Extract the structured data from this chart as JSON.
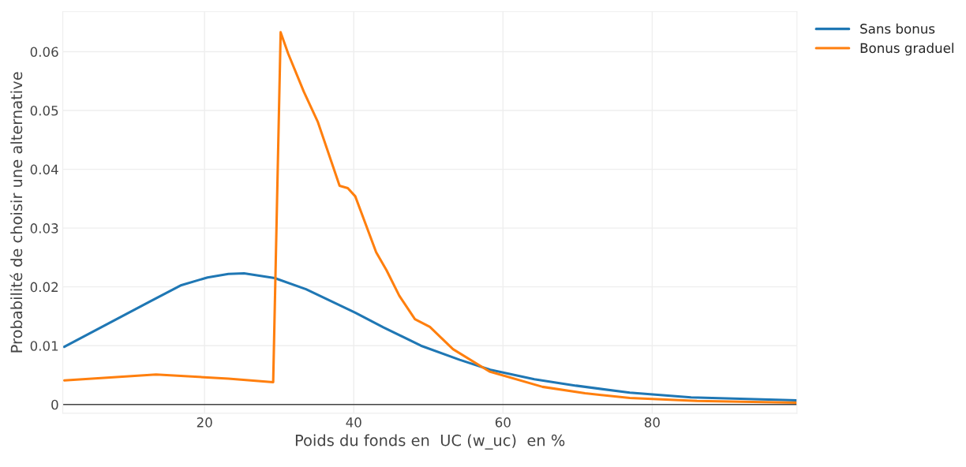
{
  "chart_data": {
    "type": "line",
    "xlabel": "Poids du fonds en  UC (w_uc)  en %",
    "ylabel": "Probabilité de choisir une alternative",
    "series": [
      {
        "name": "Sans bonus",
        "color": "#1f77b4",
        "x": [
          1.2,
          12.8,
          16.9,
          20.4,
          23.2,
          25.3,
          29.4,
          33.6,
          40.2,
          44.0,
          49.0,
          54.2,
          58.3,
          64.2,
          69.8,
          77.0,
          85.2,
          99.4
        ],
        "values": [
          0.0098,
          0.0176,
          0.0203,
          0.0216,
          0.0222,
          0.0223,
          0.0215,
          0.0196,
          0.0156,
          0.0131,
          0.01,
          0.0076,
          0.0059,
          0.0043,
          0.0032,
          0.002,
          0.0012,
          0.0007
        ]
      },
      {
        "name": "Bonus graduel",
        "color": "#ff7f0e",
        "x": [
          1.2,
          13.5,
          23.2,
          29.2,
          30.2,
          31.2,
          33.3,
          35.2,
          38.1,
          39.2,
          40.2,
          43.0,
          44.4,
          46.1,
          48.2,
          50.2,
          53.3,
          58.2,
          65.3,
          71.0,
          77.0,
          86.0,
          99.4
        ],
        "values": [
          0.0041,
          0.0051,
          0.0044,
          0.0038,
          0.0633,
          0.0597,
          0.0532,
          0.048,
          0.0372,
          0.0368,
          0.0354,
          0.0259,
          0.0228,
          0.0185,
          0.0145,
          0.0132,
          0.0094,
          0.0056,
          0.003,
          0.0019,
          0.0011,
          0.0006,
          0.0003
        ]
      }
    ],
    "xlim": [
      1,
      99.4
    ],
    "xticks": [
      20,
      40,
      60,
      80
    ],
    "ylim": [
      -0.0015,
      0.0668
    ],
    "yticks": [
      {
        "value": 0,
        "label": "0"
      },
      0.01,
      0.02,
      0.03,
      0.04,
      0.05,
      0.06
    ],
    "ref_lines": [
      {
        "axis": "y",
        "value": 0,
        "color": "#444444"
      }
    ],
    "grid": true,
    "legend": "top right",
    "marker": "none",
    "line_style": "solid"
  }
}
